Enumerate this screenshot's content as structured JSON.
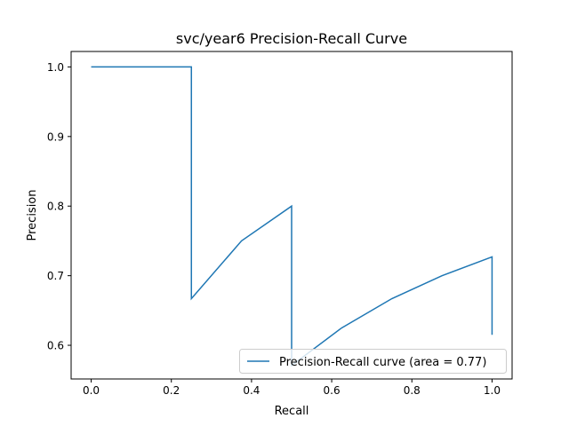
{
  "chart_data": {
    "type": "line",
    "title": "svc/year6 Precision-Recall Curve",
    "xlabel": "Recall",
    "ylabel": "Precision",
    "xlim": [
      -0.05,
      1.05
    ],
    "ylim": [
      0.5516,
      1.0222
    ],
    "xticks": [
      0.0,
      0.2,
      0.4,
      0.6,
      0.8,
      1.0
    ],
    "xtick_labels": [
      "0.0",
      "0.2",
      "0.4",
      "0.6",
      "0.8",
      "1.0"
    ],
    "yticks": [
      0.6,
      0.7,
      0.8,
      0.9,
      1.0
    ],
    "ytick_labels": [
      "0.6",
      "0.7",
      "0.8",
      "0.9",
      "1.0"
    ],
    "grid": false,
    "legend_position": "lower right",
    "series": [
      {
        "name": "Precision-Recall curve (area = 0.77)",
        "color": "#1f77b4",
        "x": [
          0.0,
          0.25,
          0.25,
          0.375,
          0.5,
          0.5,
          0.5,
          0.625,
          0.75,
          0.875,
          1.0,
          1.0
        ],
        "y": [
          1.0,
          1.0,
          0.667,
          0.75,
          0.8,
          0.571,
          0.571,
          0.625,
          0.667,
          0.7,
          0.727,
          0.615
        ]
      }
    ]
  }
}
